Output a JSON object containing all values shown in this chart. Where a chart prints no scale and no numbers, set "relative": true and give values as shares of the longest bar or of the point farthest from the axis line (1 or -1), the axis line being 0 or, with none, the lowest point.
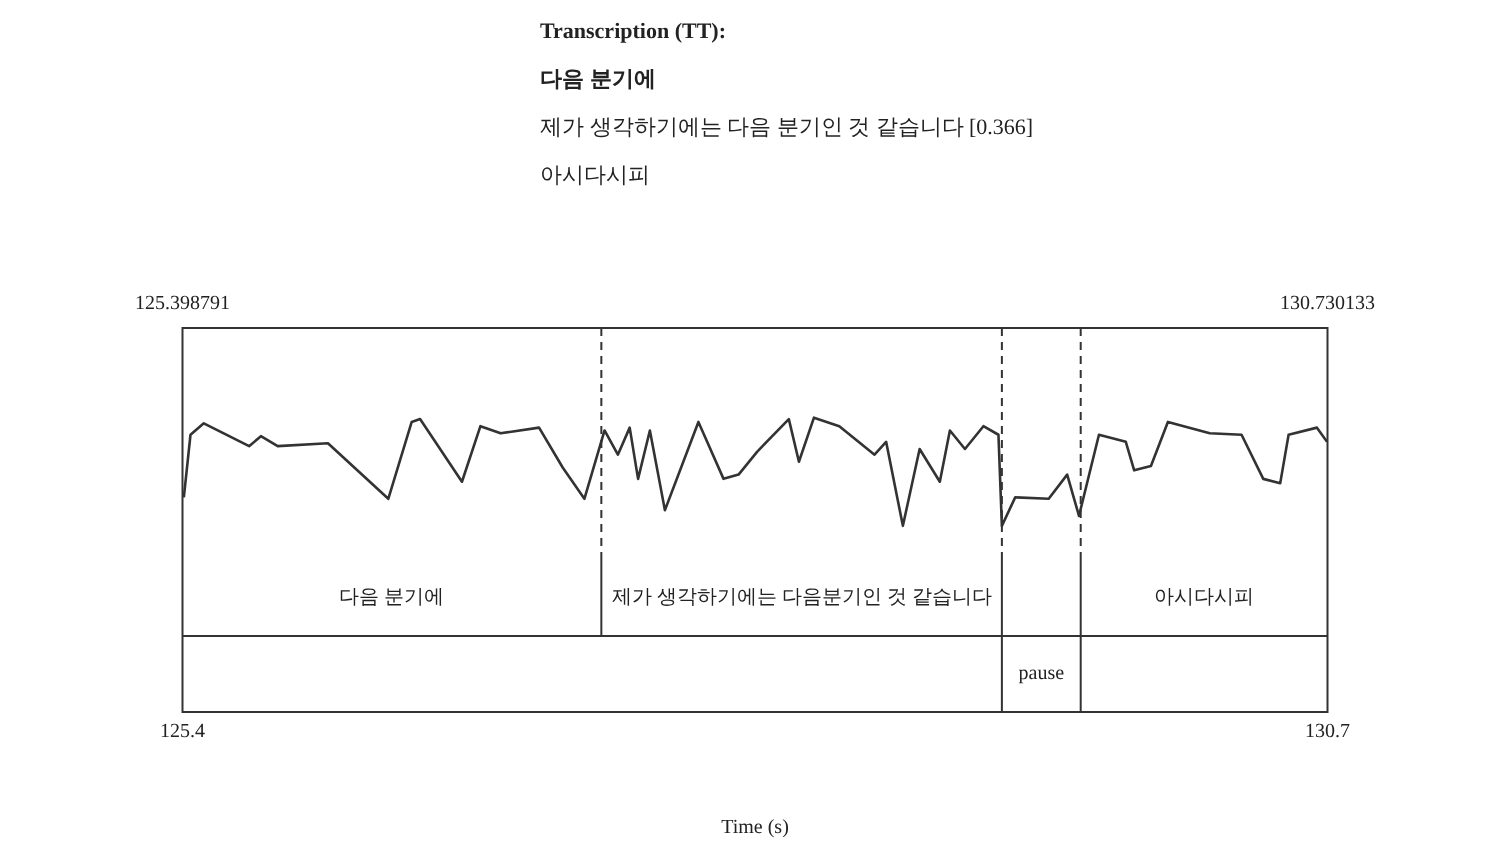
{
  "chart_data": {
    "type": "line",
    "title": "Transcription (TT):",
    "xlabel": "Time (s)",
    "relative": true,
    "grid": false,
    "legend": false,
    "marker": "none",
    "line_style": "solid",
    "xlim": [
      125.398791,
      130.730133
    ],
    "xticks": [
      {
        "value": 125.398791,
        "label": "125.4"
      },
      {
        "value": 130.730133,
        "label": "130.7"
      }
    ],
    "x2lim": [
      125.398791,
      130.730133
    ],
    "x2ticks": [
      125.398791,
      130.730133
    ],
    "series": [
      {
        "color": "#333333",
        "x": [
          125.405,
          125.436,
          125.498,
          125.709,
          125.764,
          125.842,
          126.076,
          126.357,
          126.466,
          126.505,
          126.7,
          126.786,
          126.88,
          127.059,
          127.169,
          127.27,
          127.364,
          127.426,
          127.481,
          127.52,
          127.575,
          127.645,
          127.801,
          127.918,
          127.988,
          128.074,
          128.222,
          128.269,
          128.339,
          128.457,
          128.621,
          128.675,
          128.753,
          128.831,
          128.925,
          128.972,
          129.042,
          129.128,
          129.198,
          129.214,
          129.276,
          129.432,
          129.518,
          129.573,
          129.666,
          129.791,
          129.83,
          129.908,
          129.987,
          130.182,
          130.33,
          130.431,
          130.51,
          130.549,
          130.681,
          130.728
        ],
        "values": [
          0.44,
          0.88,
          0.96,
          0.8,
          0.87,
          0.8,
          0.82,
          0.43,
          0.97,
          0.99,
          0.55,
          0.94,
          0.89,
          0.93,
          0.65,
          0.43,
          0.91,
          0.74,
          0.93,
          0.57,
          0.91,
          0.35,
          0.97,
          0.57,
          0.6,
          0.76,
          0.99,
          0.69,
          1,
          0.94,
          0.74,
          0.83,
          0.24,
          0.78,
          0.55,
          0.91,
          0.78,
          0.94,
          0.88,
          0.24,
          0.44,
          0.43,
          0.6,
          0.31,
          0.88,
          0.83,
          0.63,
          0.66,
          0.97,
          0.89,
          0.88,
          0.57,
          0.54,
          0.88,
          0.93,
          0.83
        ]
      }
    ],
    "ref_lines": [
      {
        "axis": "x",
        "value": 127.349,
        "line_style": "dashed"
      },
      {
        "axis": "x",
        "value": 129.214,
        "line_style": "dashed"
      },
      {
        "axis": "x",
        "value": 129.581,
        "line_style": "dashed"
      }
    ],
    "annotations": [
      "다음 분기에",
      "제가 생각하기에는 다음 분기인 것 같습니다 [0.366]",
      "아시다시피",
      "다음 분기에",
      "제가 생각하기에는 다음분기인 것 같습니다",
      "아시다시피",
      "pause"
    ]
  }
}
